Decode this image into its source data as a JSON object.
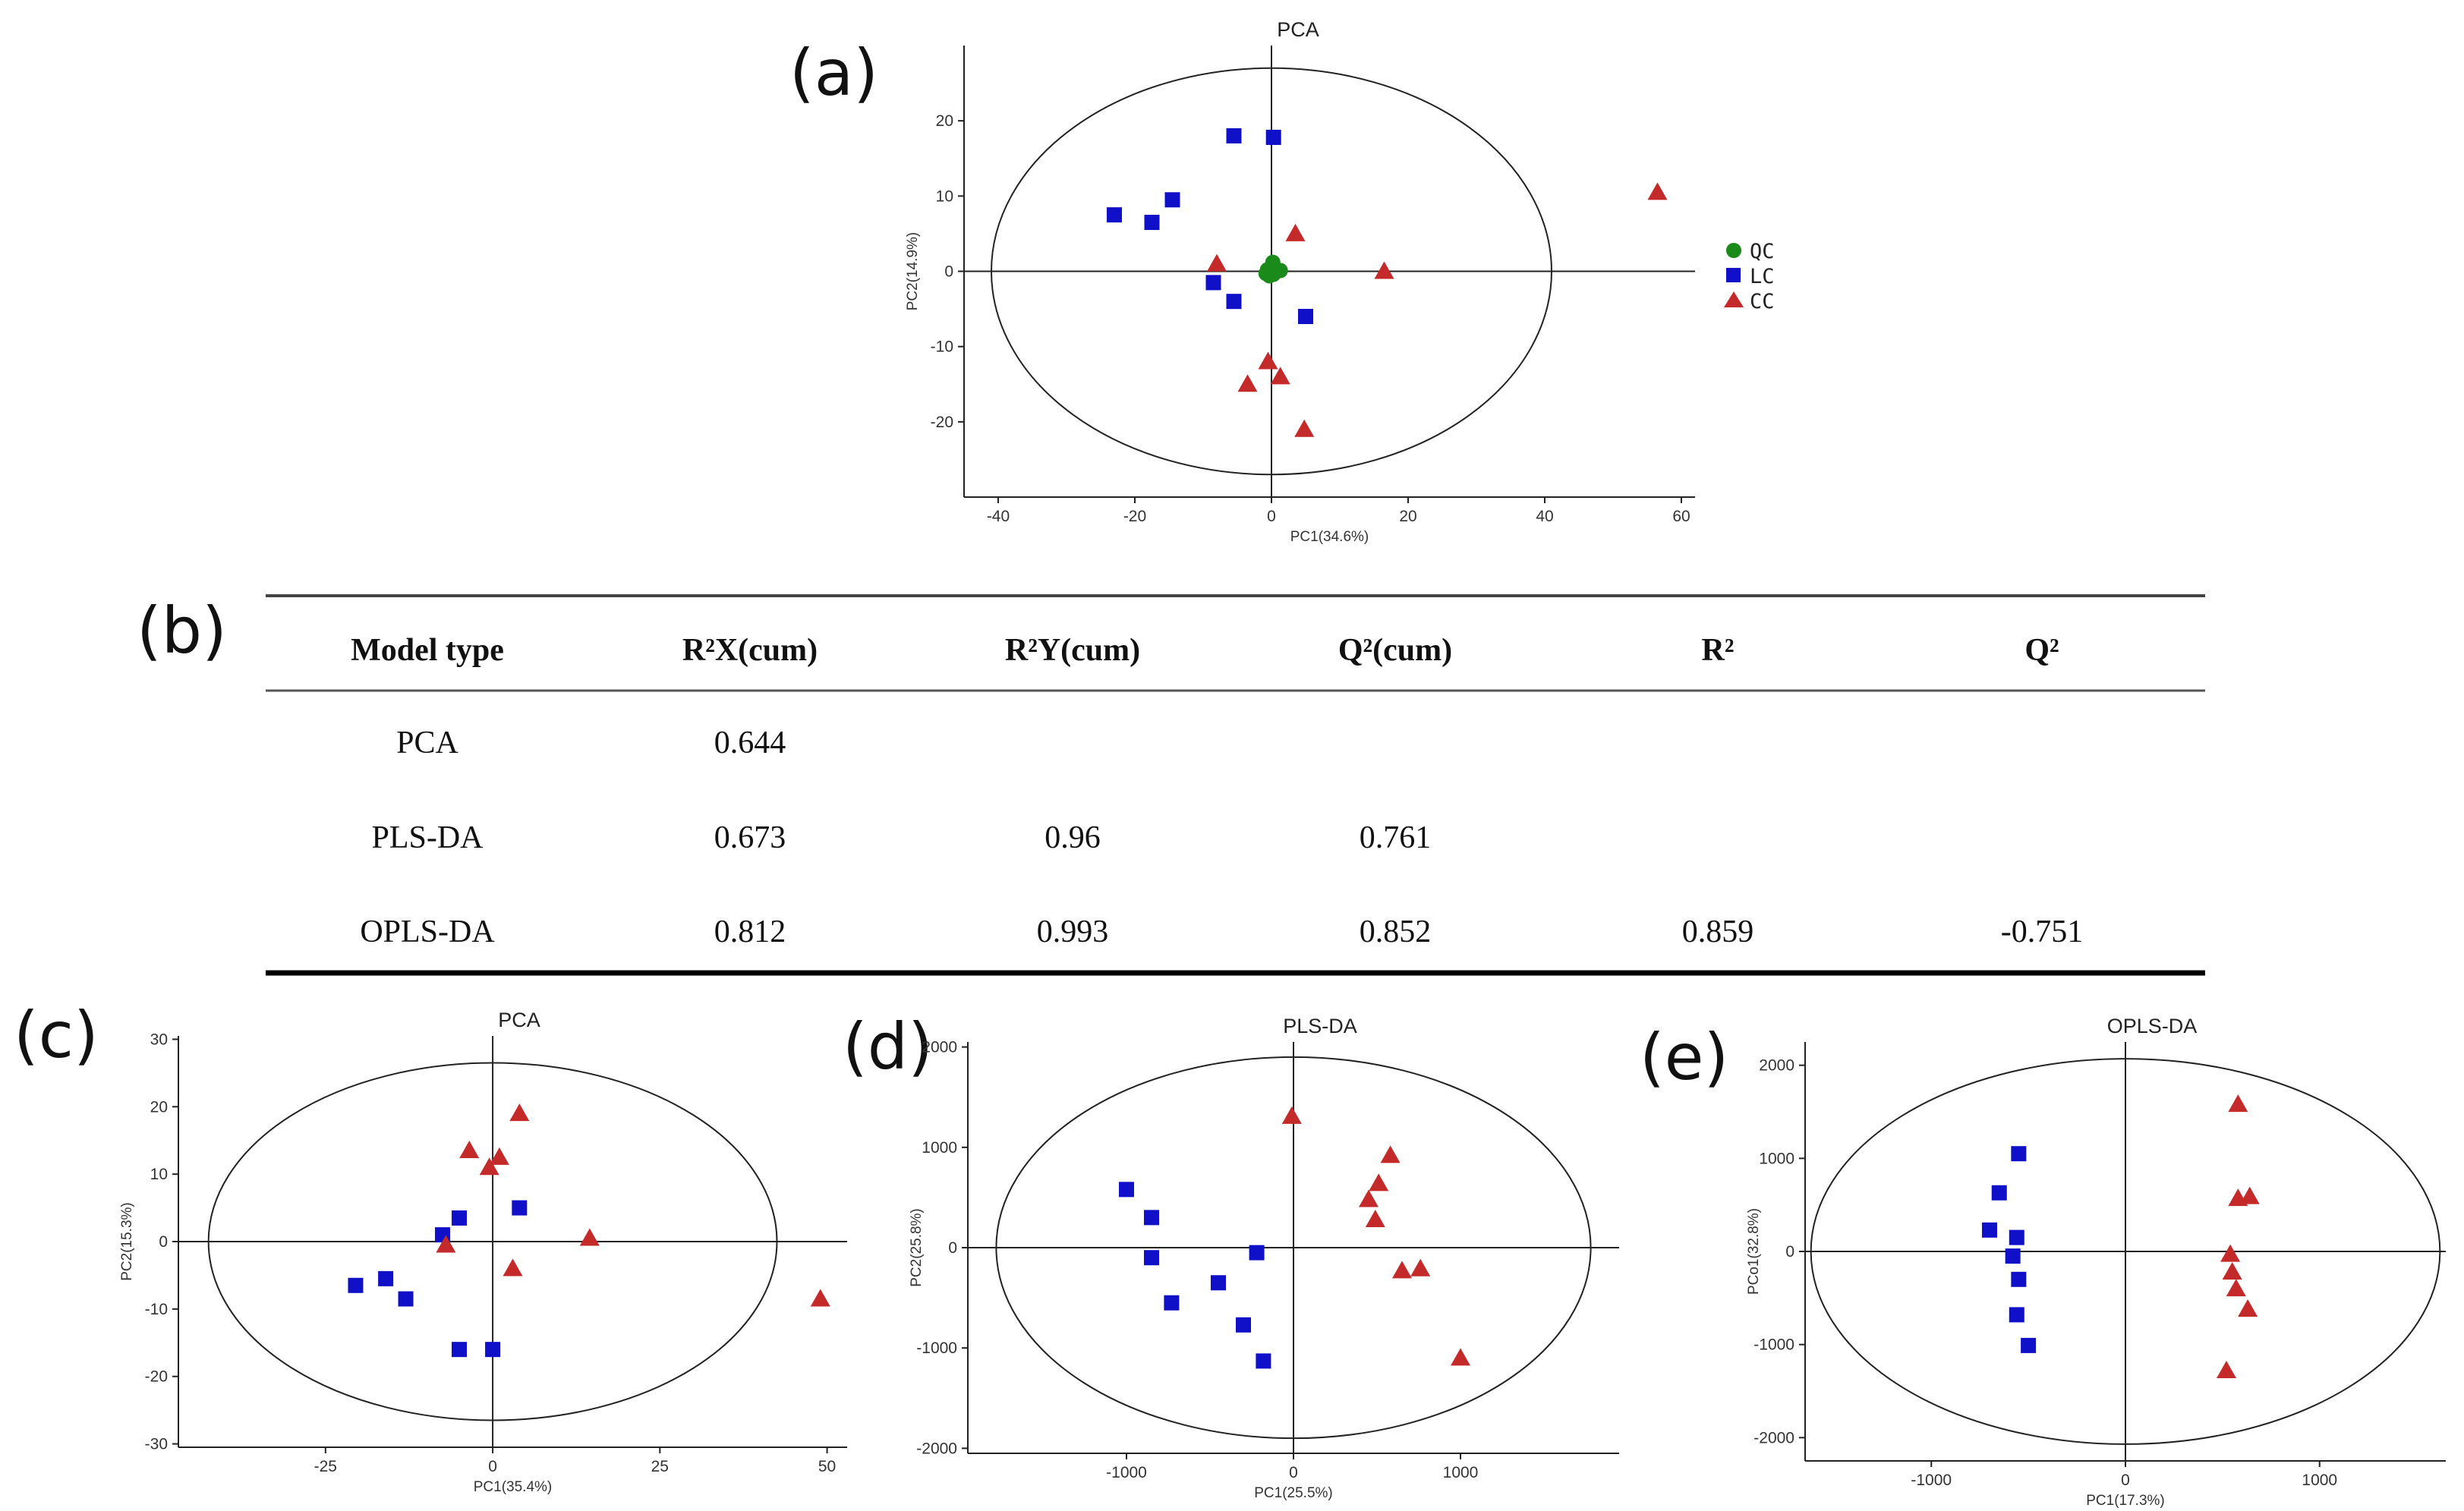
{
  "colors": {
    "QC": "#1a8a1a",
    "LC": "#1010c8",
    "CC": "#c42a2a"
  },
  "panel_labels": {
    "a": "(a)",
    "b": "(b)",
    "c": "(c)",
    "d": "(d)",
    "e": "(e)"
  },
  "table": {
    "headers": [
      "Model type",
      "R²X(cum)",
      "R²Y(cum)",
      "Q²(cum)",
      "R²",
      "Q²"
    ],
    "rows": [
      [
        "PCA",
        "0.644",
        "",
        "",
        "",
        ""
      ],
      [
        "PLS-DA",
        "0.673",
        "0.96",
        "0.761",
        "",
        ""
      ],
      [
        "OPLS-DA",
        "0.812",
        "0.993",
        "0.852",
        "0.859",
        "-0.751"
      ]
    ]
  },
  "chart_data": [
    {
      "id": "a",
      "type": "scatter",
      "title": "PCA",
      "xlabel": "PC1(34.6%)",
      "ylabel": "PC2(14.9%)",
      "xlim": [
        -45,
        62
      ],
      "ylim": [
        -30,
        30
      ],
      "xticks": [
        -40,
        -20,
        0,
        20,
        40,
        60
      ],
      "yticks": [
        20,
        10,
        0,
        -10,
        -20
      ],
      "ellipse": {
        "rx": 41,
        "ry": 27
      },
      "legend": {
        "position": "right",
        "entries": [
          "QC",
          "LC",
          "CC"
        ]
      },
      "series": [
        {
          "name": "QC",
          "marker": "circle",
          "points": [
            [
              0.2,
              1.2
            ],
            [
              -0.6,
              0.2
            ],
            [
              0.6,
              -0.1
            ],
            [
              -0.3,
              -0.6
            ],
            [
              0.3,
              -0.4
            ],
            [
              1.3,
              0.1
            ],
            [
              -0.8,
              -0.3
            ],
            [
              0.0,
              0.6
            ]
          ]
        },
        {
          "name": "LC",
          "marker": "square",
          "points": [
            [
              -5.5,
              18
            ],
            [
              0.3,
              17.8
            ],
            [
              -23,
              7.5
            ],
            [
              -14.5,
              9.5
            ],
            [
              -17.5,
              6.5
            ],
            [
              -8.5,
              -1.5
            ],
            [
              -5.5,
              -4
            ],
            [
              5,
              -6
            ]
          ]
        },
        {
          "name": "CC",
          "marker": "triangle",
          "points": [
            [
              56.5,
              10.5
            ],
            [
              3.5,
              5
            ],
            [
              -8,
              1
            ],
            [
              16.5,
              0
            ],
            [
              -0.5,
              -12
            ],
            [
              1.3,
              -14
            ],
            [
              -3.5,
              -15
            ],
            [
              4.8,
              -21
            ]
          ]
        }
      ]
    },
    {
      "id": "c",
      "type": "scatter",
      "title": "PCA",
      "xlabel": "PC1(35.4%)",
      "ylabel": "PC2(15.3%)",
      "xlim": [
        -47,
        53
      ],
      "ylim": [
        -30.5,
        30.5
      ],
      "xticks": [
        -25,
        0,
        25,
        50
      ],
      "yticks": [
        30,
        20,
        10,
        0,
        -10,
        -20,
        -30
      ],
      "ellipse": {
        "rx": 42.5,
        "ry": 26.5
      },
      "series": [
        {
          "name": "LC",
          "marker": "square",
          "points": [
            [
              -20.5,
              -6.5
            ],
            [
              -16,
              -5.5
            ],
            [
              -13,
              -8.5
            ],
            [
              -7.5,
              1
            ],
            [
              -5,
              3.5
            ],
            [
              4,
              5
            ],
            [
              -5,
              -16
            ],
            [
              0,
              -16
            ]
          ]
        },
        {
          "name": "CC",
          "marker": "triangle",
          "points": [
            [
              4,
              19
            ],
            [
              -3.5,
              13.5
            ],
            [
              1,
              12.5
            ],
            [
              -0.5,
              11
            ],
            [
              -7,
              -0.5
            ],
            [
              14.5,
              0.5
            ],
            [
              3,
              -4
            ],
            [
              49,
              -8.5
            ]
          ]
        }
      ]
    },
    {
      "id": "d",
      "type": "scatter",
      "title": "PLS-DA",
      "xlabel": "PC1(25.5%)",
      "ylabel": "PC2(25.8%)",
      "xlim": [
        -1950,
        1950
      ],
      "ylim": [
        -2050,
        2050
      ],
      "xticks": [
        -1000,
        0,
        1000
      ],
      "yticks": [
        2000,
        1000,
        0,
        -1000,
        -2000
      ],
      "ellipse": {
        "rx": 1780,
        "ry": 1900
      },
      "series": [
        {
          "name": "LC",
          "marker": "square",
          "points": [
            [
              -1000,
              580
            ],
            [
              -850,
              300
            ],
            [
              -850,
              -100
            ],
            [
              -730,
              -550
            ],
            [
              -450,
              -350
            ],
            [
              -300,
              -770
            ],
            [
              -220,
              -50
            ],
            [
              -180,
              -1130
            ]
          ]
        },
        {
          "name": "CC",
          "marker": "triangle",
          "points": [
            [
              -10,
              1310
            ],
            [
              580,
              920
            ],
            [
              510,
              640
            ],
            [
              450,
              480
            ],
            [
              490,
              280
            ],
            [
              650,
              -230
            ],
            [
              760,
              -210
            ],
            [
              1000,
              -1100
            ]
          ]
        }
      ]
    },
    {
      "id": "e",
      "type": "scatter",
      "title": "OPLS-DA",
      "xlabel": "PC1(17.3%)",
      "ylabel": "PCo1(32.8%)",
      "xlim": [
        -1650,
        1650
      ],
      "ylim": [
        -2250,
        2250
      ],
      "xticks": [
        -1000,
        0,
        1000
      ],
      "yticks": [
        2000,
        1000,
        0,
        -1000,
        -2000
      ],
      "ellipse": {
        "rx": 1620,
        "ry": 2070
      },
      "series": [
        {
          "name": "LC",
          "marker": "square",
          "points": [
            [
              -550,
              1050
            ],
            [
              -650,
              630
            ],
            [
              -700,
              230
            ],
            [
              -560,
              150
            ],
            [
              -580,
              -50
            ],
            [
              -550,
              -300
            ],
            [
              -560,
              -680
            ],
            [
              -500,
              -1010
            ]
          ]
        },
        {
          "name": "CC",
          "marker": "triangle",
          "points": [
            [
              580,
              1580
            ],
            [
              580,
              570
            ],
            [
              640,
              590
            ],
            [
              540,
              -30
            ],
            [
              550,
              -220
            ],
            [
              570,
              -400
            ],
            [
              630,
              -620
            ],
            [
              520,
              -1280
            ]
          ]
        }
      ]
    }
  ]
}
